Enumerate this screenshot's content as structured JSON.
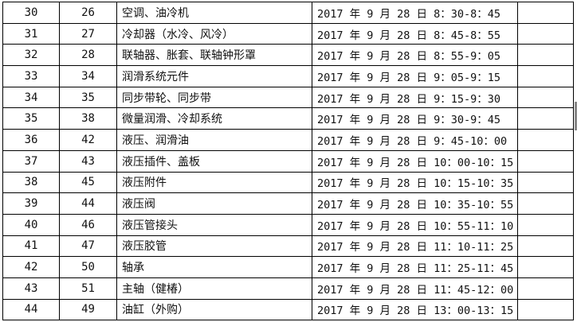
{
  "table": {
    "rows": [
      [
        "30",
        "26",
        "空调、油冷机",
        "2017 年 9 月 28 日 8：30-8：45",
        ""
      ],
      [
        "31",
        "27",
        "冷却器（水冷、风冷）",
        "2017 年 9 月 28 日 8：45-8：55",
        ""
      ],
      [
        "32",
        "28",
        "联轴器、胀套、联轴钟形罩",
        "2017 年 9 月 28 日 8：55-9：05",
        ""
      ],
      [
        "33",
        "34",
        "润滑系统元件",
        "2017 年 9 月 28 日 9：05-9：15",
        ""
      ],
      [
        "34",
        "35",
        "同步带轮、同步带",
        "2017 年 9 月 28 日 9：15-9：30",
        ""
      ],
      [
        "35",
        "38",
        "微量润滑、冷却系统",
        "2017 年 9 月 28 日 9：30-9：45",
        ""
      ],
      [
        "36",
        "42",
        "液压、润滑油",
        "2017 年 9 月 28 日 9：45-10：00",
        ""
      ],
      [
        "37",
        "43",
        "液压插件、盖板",
        "2017 年 9 月 28 日 10：00-10：15",
        ""
      ],
      [
        "38",
        "45",
        "液压附件",
        "2017 年 9 月 28 日 10：15-10：35",
        ""
      ],
      [
        "39",
        "44",
        "液压阀",
        "2017 年 9 月 28 日 10：35-10：55",
        ""
      ],
      [
        "40",
        "46",
        "液压管接头",
        "2017 年 9 月 28 日 10：55-11：10",
        ""
      ],
      [
        "41",
        "47",
        "液压胶管",
        "2017 年 9 月 28 日 11：10-11：25",
        ""
      ],
      [
        "42",
        "50",
        "轴承",
        "2017 年 9 月 28 日 11：25-11：45",
        ""
      ],
      [
        "43",
        "51",
        "主轴（健椿）",
        "2017 年 9 月 28 日 11：45-12：00",
        ""
      ],
      [
        "44",
        "49",
        "油缸（外购）",
        "2017 年 9 月 28 日 13：00-13：15",
        ""
      ]
    ]
  }
}
